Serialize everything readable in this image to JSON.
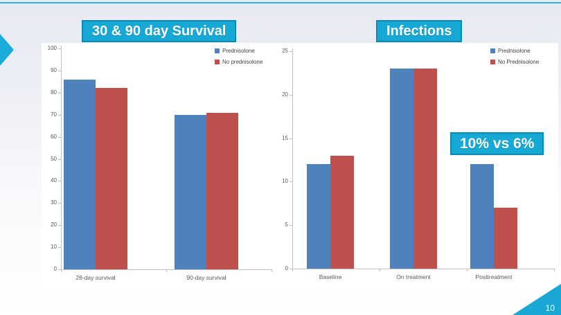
{
  "slide": {
    "page_number": "10"
  },
  "annotation": {
    "label": "10% vs 6%"
  },
  "colors": {
    "accent_cyan": "#17a9d6",
    "accent_cyan_border": "#0e87b1",
    "series_blue": "#4f81bd",
    "series_red": "#c0504d"
  },
  "chart_data": [
    {
      "type": "bar",
      "title": "30 & 90 day Survival",
      "categories": [
        "28-day survival",
        "90-day survival"
      ],
      "series": [
        {
          "name": "Prednisolone",
          "color": "#4f81bd",
          "values": [
            86,
            70
          ]
        },
        {
          "name": "No prednisolone",
          "color": "#c0504d",
          "values": [
            82,
            71
          ]
        }
      ],
      "xlabel": "",
      "ylabel": "",
      "ylim": [
        0,
        100
      ],
      "ytick_step": 10,
      "grid": false,
      "legend_position": "top-right"
    },
    {
      "type": "bar",
      "title": "Infections",
      "categories": [
        "Baseline",
        "On treatment",
        "Posttreatment"
      ],
      "series": [
        {
          "name": "Prednisolone",
          "color": "#4f81bd",
          "values": [
            12,
            23,
            12
          ]
        },
        {
          "name": "No Prednisolone",
          "color": "#c0504d",
          "values": [
            13,
            23,
            7
          ]
        }
      ],
      "xlabel": "",
      "ylabel": "",
      "ylim": [
        0,
        25
      ],
      "ytick_step": 5,
      "grid": false,
      "legend_position": "top-right",
      "annotation": "10% vs 6%"
    }
  ]
}
